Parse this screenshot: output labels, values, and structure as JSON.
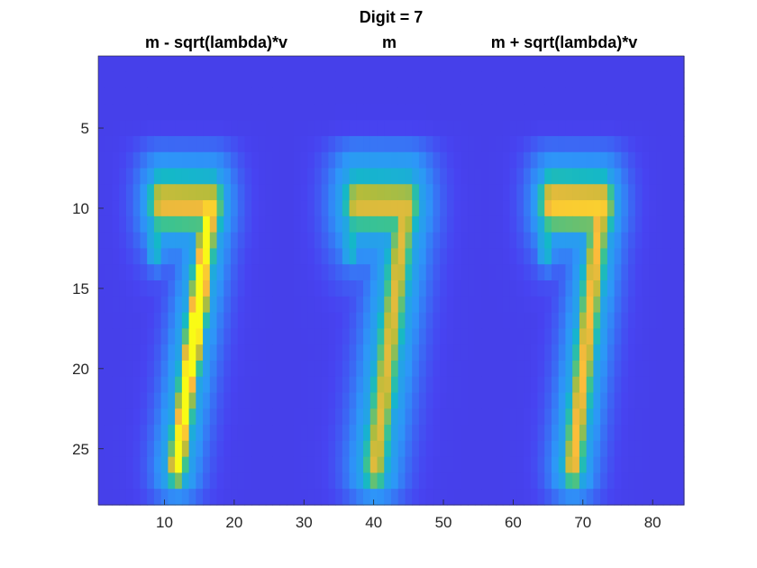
{
  "chart_data": {
    "type": "heatmap",
    "title": "Digit = 7",
    "panel_titles": [
      "m - sqrt(lambda)*v",
      "m",
      "m + sqrt(lambda)*v"
    ],
    "x_ticks": [
      10,
      20,
      30,
      40,
      50,
      60,
      70,
      80
    ],
    "y_ticks": [
      5,
      10,
      15,
      20,
      25
    ],
    "xlim": [
      0.5,
      84.5
    ],
    "ylim": [
      0.5,
      28.5
    ],
    "y_reversed": true,
    "image_size": {
      "rows": 28,
      "cols": 84
    },
    "panels": 3,
    "colormap": "parula",
    "colormap_stops": [
      "#3e26a8",
      "#4743f1",
      "#2d97f8",
      "#14b8c8",
      "#3ec38e",
      "#b4bc3b",
      "#fbba3c",
      "#f9fb15"
    ],
    "digit_stroke_description": "Handwritten digit 7: horizontal bar near row 9-10 spanning cols ~9-17 (per panel), diagonal stroke descending to bottom-left near row 25-26"
  }
}
